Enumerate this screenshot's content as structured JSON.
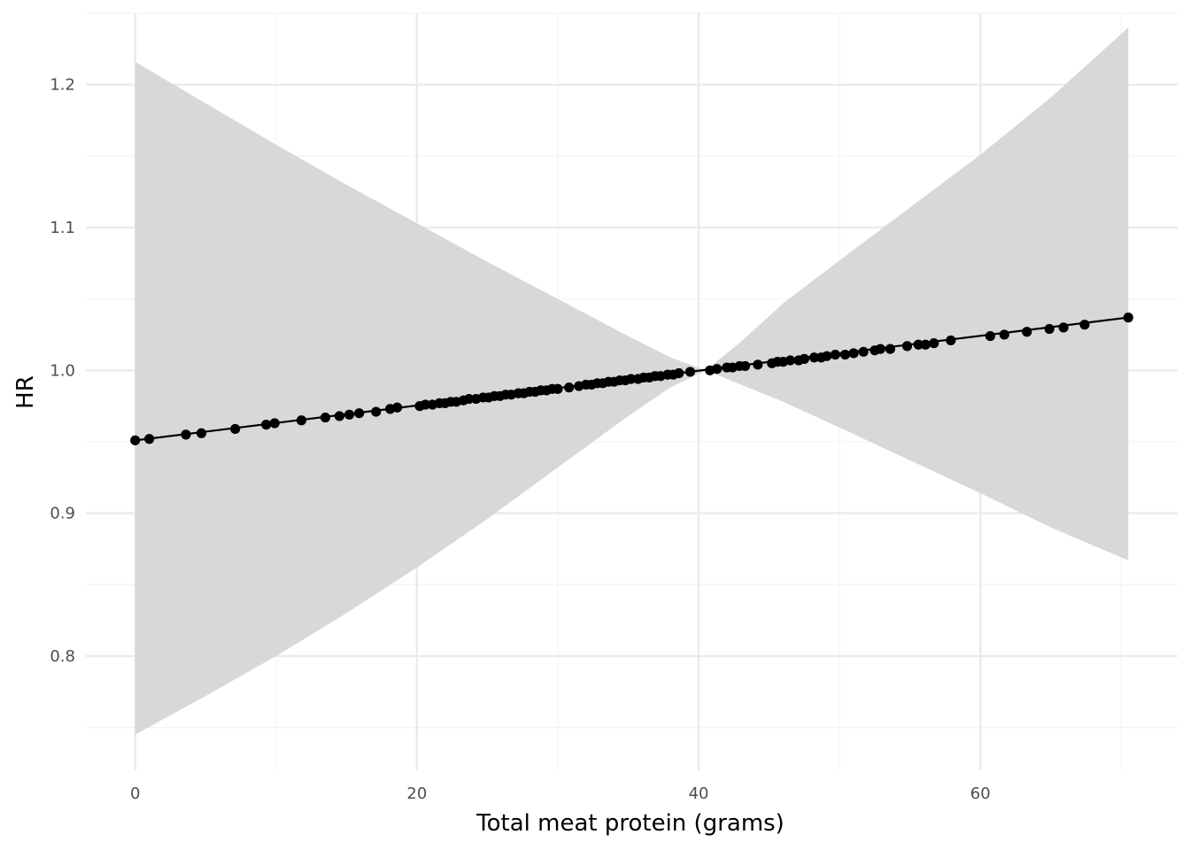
{
  "chart_data": {
    "type": "line",
    "title": "",
    "xlabel": "Total meat protein (grams)",
    "ylabel": "HR",
    "xlim": [
      -3.5,
      74
    ],
    "ylim": [
      0.72,
      1.25
    ],
    "x_ticks_major": [
      0,
      20,
      40,
      60
    ],
    "x_tick_labels": [
      "0",
      "20",
      "40",
      "60"
    ],
    "y_ticks_major": [
      0.8,
      0.9,
      1.0,
      1.1,
      1.2
    ],
    "y_tick_labels": [
      "0.8",
      "0.9",
      "1.0",
      "1.1",
      "1.2"
    ],
    "grid": true,
    "legend": "none",
    "colors": {
      "ribbon": "#d6d6d6",
      "line": "#000000",
      "points": "#000000",
      "grid_major": "#ebebeb",
      "grid_minor": "#f4f4f4"
    },
    "fit_line": {
      "x": [
        0,
        70.5
      ],
      "y": [
        0.951,
        1.037
      ]
    },
    "confidence_band": {
      "x": [
        0,
        5,
        10,
        15,
        20,
        25,
        30,
        35,
        38,
        40.5,
        43,
        46,
        50,
        55,
        60,
        65,
        70.5
      ],
      "lower": [
        0.745,
        0.772,
        0.8,
        0.83,
        0.862,
        0.896,
        0.932,
        0.968,
        0.988,
        1.0,
        0.99,
        0.978,
        0.96,
        0.937,
        0.914,
        0.89,
        0.867
      ],
      "upper": [
        1.216,
        1.187,
        1.158,
        1.13,
        1.103,
        1.076,
        1.05,
        1.024,
        1.009,
        1.0,
        1.02,
        1.047,
        1.077,
        1.114,
        1.151,
        1.191,
        1.24
      ]
    },
    "points": {
      "x": [
        0,
        1,
        3.6,
        4.7,
        7.1,
        9.3,
        9.9,
        11.8,
        13.5,
        14.5,
        15.2,
        15.9,
        17.1,
        18.1,
        18.6,
        20.2,
        20.6,
        21.1,
        21.6,
        22,
        22.4,
        22.8,
        23.3,
        23.7,
        24.2,
        24.7,
        25.1,
        25.5,
        25.9,
        26.3,
        26.7,
        27.2,
        27.6,
        28,
        28.4,
        28.8,
        29.2,
        29.6,
        30,
        30.8,
        31.5,
        32,
        32.4,
        32.8,
        33.2,
        33.6,
        34,
        34.4,
        34.8,
        35.2,
        35.7,
        36.1,
        36.5,
        36.9,
        37.3,
        37.8,
        38.2,
        38.6,
        39.4,
        40.8,
        41.3,
        42,
        42.4,
        42.9,
        43.3,
        44.2,
        45.2,
        45.6,
        46,
        46.5,
        47.1,
        47.5,
        48.2,
        48.7,
        49.1,
        49.7,
        50.4,
        51,
        51.7,
        52.5,
        52.9,
        53.6,
        54.8,
        55.6,
        56.1,
        56.7,
        57.9,
        60.7,
        61.7,
        63.3,
        64.9,
        65.9,
        67.4,
        70.5
      ],
      "y": [
        0.951,
        0.952,
        0.955,
        0.956,
        0.959,
        0.962,
        0.963,
        0.965,
        0.967,
        0.968,
        0.969,
        0.97,
        0.971,
        0.973,
        0.974,
        0.975,
        0.976,
        0.976,
        0.977,
        0.977,
        0.978,
        0.978,
        0.979,
        0.98,
        0.98,
        0.981,
        0.981,
        0.982,
        0.982,
        0.983,
        0.983,
        0.984,
        0.984,
        0.985,
        0.985,
        0.986,
        0.986,
        0.987,
        0.987,
        0.988,
        0.989,
        0.99,
        0.99,
        0.991,
        0.991,
        0.992,
        0.992,
        0.993,
        0.993,
        0.994,
        0.994,
        0.995,
        0.995,
        0.996,
        0.996,
        0.997,
        0.997,
        0.998,
        0.999,
        1.0,
        1.001,
        1.002,
        1.002,
        1.003,
        1.003,
        1.004,
        1.005,
        1.006,
        1.006,
        1.007,
        1.007,
        1.008,
        1.009,
        1.009,
        1.01,
        1.011,
        1.011,
        1.012,
        1.013,
        1.014,
        1.015,
        1.015,
        1.017,
        1.018,
        1.018,
        1.019,
        1.021,
        1.024,
        1.025,
        1.027,
        1.029,
        1.03,
        1.032,
        1.037
      ]
    }
  }
}
